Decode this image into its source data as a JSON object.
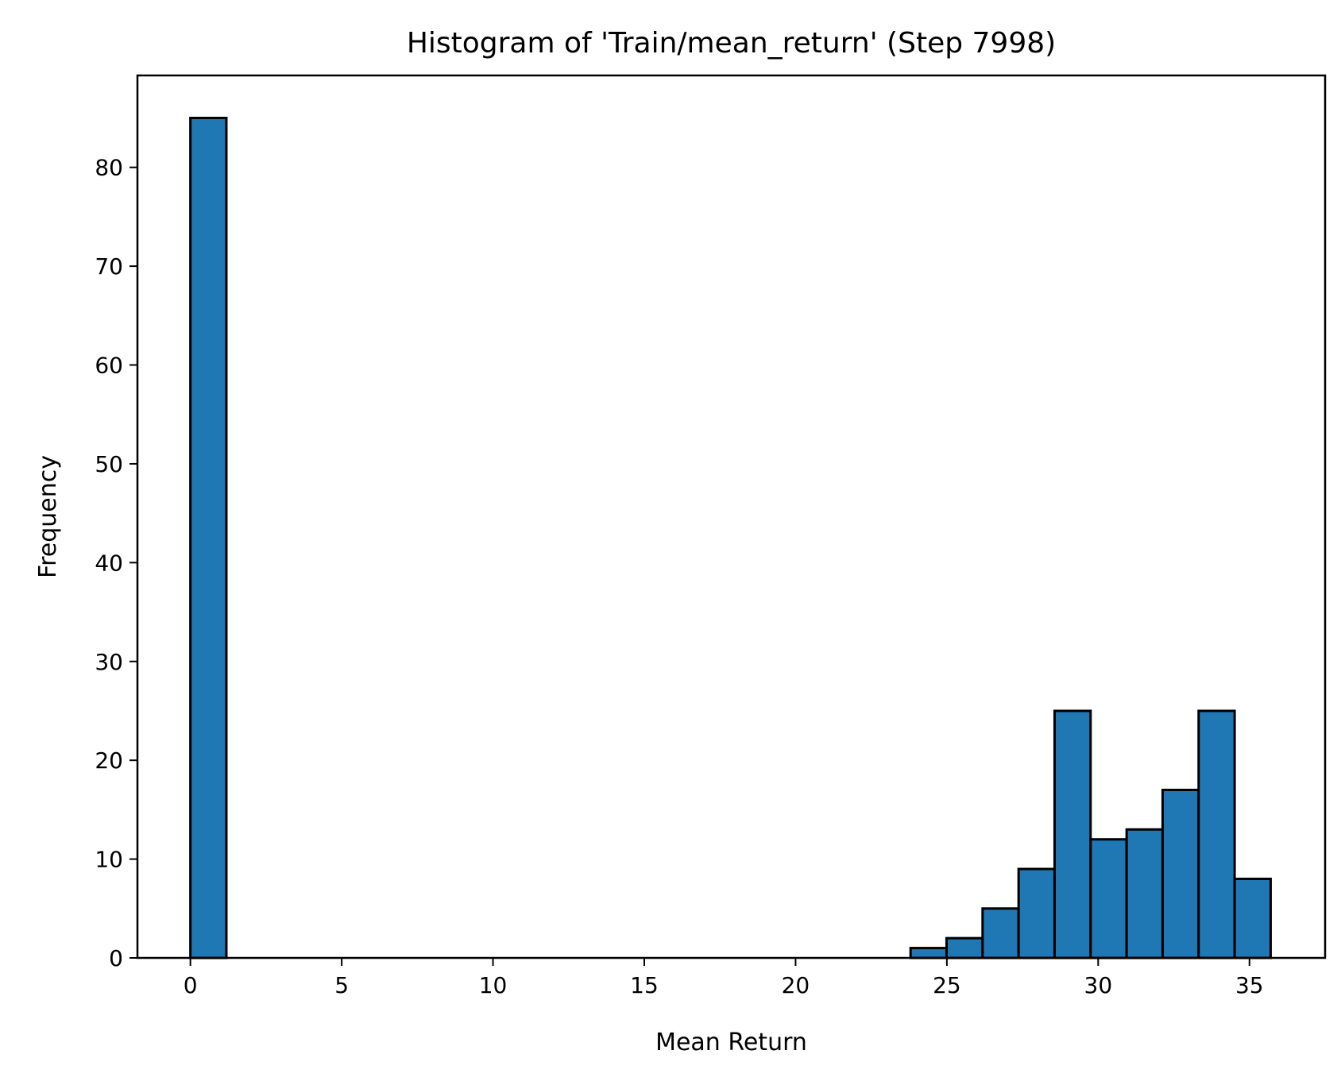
{
  "chart_data": {
    "type": "bar",
    "subtype": "histogram",
    "title": "Histogram of 'Train/mean_return' (Step 7998)",
    "xlabel": "Mean Return",
    "ylabel": "Frequency",
    "xlim": [
      -1.75,
      37.5
    ],
    "ylim": [
      0,
      89.3
    ],
    "xticks": [
      0,
      5,
      10,
      15,
      20,
      25,
      30,
      35
    ],
    "xtick_labels": [
      "0",
      "5",
      "10",
      "15",
      "20",
      "25",
      "30",
      "35"
    ],
    "yticks": [
      0,
      10,
      20,
      30,
      40,
      50,
      60,
      70,
      80
    ],
    "ytick_labels": [
      "0",
      "10",
      "20",
      "30",
      "40",
      "50",
      "60",
      "70",
      "80"
    ],
    "bin_start": 0,
    "bin_width": 1.19,
    "values": [
      85,
      0,
      0,
      0,
      0,
      0,
      0,
      0,
      0,
      0,
      0,
      0,
      0,
      0,
      0,
      0,
      0,
      0,
      0,
      0,
      1,
      2,
      5,
      9,
      25,
      12,
      13,
      17,
      25,
      8
    ],
    "grid": false,
    "legend": "none",
    "bar_color": "#1f77b4",
    "edge_color": "#000000"
  }
}
